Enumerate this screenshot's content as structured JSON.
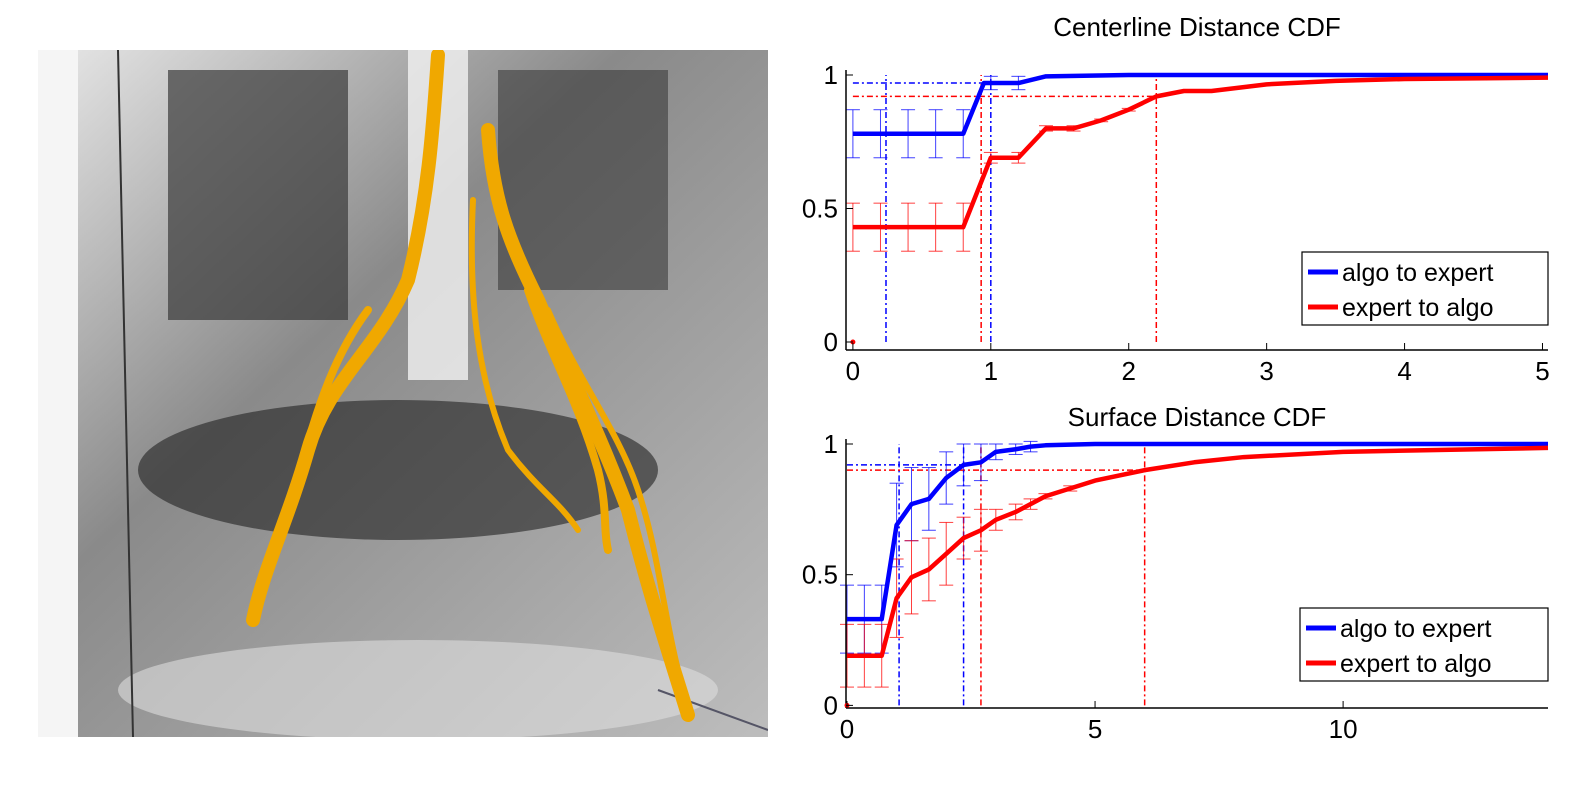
{
  "figure": {
    "left_panel": {
      "type": "3d-rendering",
      "nerve_color": "#f0a800"
    }
  },
  "chart_data": [
    {
      "type": "line",
      "title": "Centerline Distance CDF",
      "xlabel": "",
      "ylabel": "",
      "xlim": [
        -0.05,
        5.04
      ],
      "ylim": [
        -0.03,
        1.0
      ],
      "xticks": [
        0,
        1,
        2,
        3,
        4,
        5
      ],
      "xtick_labels": [
        "0",
        "1",
        "2",
        "3",
        "4",
        "5"
      ],
      "yticks": [
        0,
        0.5,
        1
      ],
      "ytick_labels": [
        "0",
        "0.5",
        "1"
      ],
      "grid": false,
      "legend_placement": "bottom-right",
      "series": [
        {
          "name": "algo to expert",
          "color": "#0000ff",
          "x": [
            0,
            0.8,
            0.95,
            1.2,
            1.4,
            2,
            5.04
          ],
          "y": [
            0.78,
            0.78,
            0.97,
            0.97,
            0.995,
            1.0,
            1.0
          ],
          "errorbars": {
            "x": [
              0,
              0.2,
              0.4,
              0.6,
              0.8,
              1.0,
              1.2
            ],
            "y": [
              0.78,
              0.78,
              0.78,
              0.78,
              0.78,
              0.97,
              0.97
            ],
            "err": [
              0.09,
              0.09,
              0.09,
              0.09,
              0.09,
              0.025,
              0.025
            ]
          },
          "reference": {
            "y": 0.97,
            "x_vlines": [
              0.24,
              1.0
            ]
          }
        },
        {
          "name": "expert to algo",
          "color": "#ff0000",
          "x": [
            0,
            0.8,
            1.0,
            1.2,
            1.4,
            1.6,
            1.8,
            2.0,
            2.2,
            2.4,
            2.6,
            3.0,
            3.5,
            4.0,
            5.04
          ],
          "y": [
            0.43,
            0.43,
            0.69,
            0.69,
            0.8,
            0.8,
            0.83,
            0.87,
            0.92,
            0.94,
            0.94,
            0.965,
            0.978,
            0.985,
            0.99
          ],
          "errorbars": {
            "x": [
              0,
              0.2,
              0.4,
              0.6,
              0.8,
              1.0,
              1.2,
              1.4,
              1.6,
              1.8,
              2.0
            ],
            "y": [
              0.43,
              0.43,
              0.43,
              0.43,
              0.43,
              0.69,
              0.69,
              0.8,
              0.8,
              0.83,
              0.87
            ],
            "err": [
              0.09,
              0.09,
              0.09,
              0.09,
              0.09,
              0.02,
              0.02,
              0.01,
              0.01,
              0.005,
              0.005
            ]
          },
          "reference": {
            "y": 0.92,
            "x_vlines": [
              0.93,
              2.2
            ]
          }
        }
      ]
    },
    {
      "type": "line",
      "title": "Surface Distance CDF",
      "xlabel": "",
      "ylabel": "",
      "xlim": [
        -0.02,
        14.13
      ],
      "ylim": [
        -0.01,
        1.0
      ],
      "xticks": [
        0,
        5,
        10
      ],
      "xtick_labels": [
        "0",
        "5",
        "10"
      ],
      "yticks": [
        0,
        0.5,
        1
      ],
      "ytick_labels": [
        "0",
        "0.5",
        "1"
      ],
      "grid": false,
      "legend_placement": "bottom-right",
      "series": [
        {
          "name": "algo to expert",
          "color": "#0000ff",
          "x": [
            0,
            0.7,
            1.0,
            1.3,
            1.65,
            2.0,
            2.35,
            2.7,
            3.0,
            3.4,
            3.7,
            4.0,
            5.0,
            14.13
          ],
          "y": [
            0.33,
            0.33,
            0.69,
            0.77,
            0.79,
            0.87,
            0.92,
            0.93,
            0.97,
            0.98,
            0.99,
            0.995,
            1.0,
            1.0
          ],
          "errorbars": {
            "x": [
              0,
              0.35,
              0.7,
              1.0,
              1.3,
              1.65,
              2.0,
              2.35,
              2.7,
              3.0,
              3.4,
              3.7
            ],
            "y": [
              0.33,
              0.33,
              0.33,
              0.69,
              0.77,
              0.79,
              0.87,
              0.92,
              0.93,
              0.97,
              0.98,
              0.99
            ],
            "err": [
              0.13,
              0.13,
              0.13,
              0.16,
              0.14,
              0.12,
              0.1,
              0.08,
              0.07,
              0.03,
              0.02,
              0.02
            ]
          },
          "reference": {
            "y": 0.92,
            "x_vlines": [
              1.05,
              2.35
            ]
          }
        },
        {
          "name": "expert to algo",
          "color": "#ff0000",
          "x": [
            0,
            0.7,
            1.0,
            1.3,
            1.65,
            2.0,
            2.35,
            2.7,
            3.0,
            3.4,
            3.7,
            4.0,
            5.0,
            6.0,
            7.0,
            8.0,
            10.0,
            14.13
          ],
          "y": [
            0.19,
            0.19,
            0.41,
            0.49,
            0.52,
            0.58,
            0.64,
            0.67,
            0.71,
            0.74,
            0.77,
            0.8,
            0.86,
            0.9,
            0.93,
            0.95,
            0.97,
            0.985
          ],
          "errorbars": {
            "x": [
              0,
              0.35,
              0.7,
              1.0,
              1.3,
              1.65,
              2.0,
              2.35,
              2.7,
              3.0,
              3.4,
              3.7,
              4.0,
              4.5
            ],
            "y": [
              0.19,
              0.19,
              0.19,
              0.41,
              0.49,
              0.52,
              0.58,
              0.64,
              0.67,
              0.71,
              0.74,
              0.77,
              0.8,
              0.83
            ],
            "err": [
              0.12,
              0.12,
              0.12,
              0.15,
              0.14,
              0.12,
              0.12,
              0.08,
              0.08,
              0.04,
              0.03,
              0.02,
              0.01,
              0.01
            ]
          },
          "reference": {
            "y": 0.9,
            "x_vlines": [
              2.7,
              6.0
            ]
          }
        }
      ]
    }
  ]
}
